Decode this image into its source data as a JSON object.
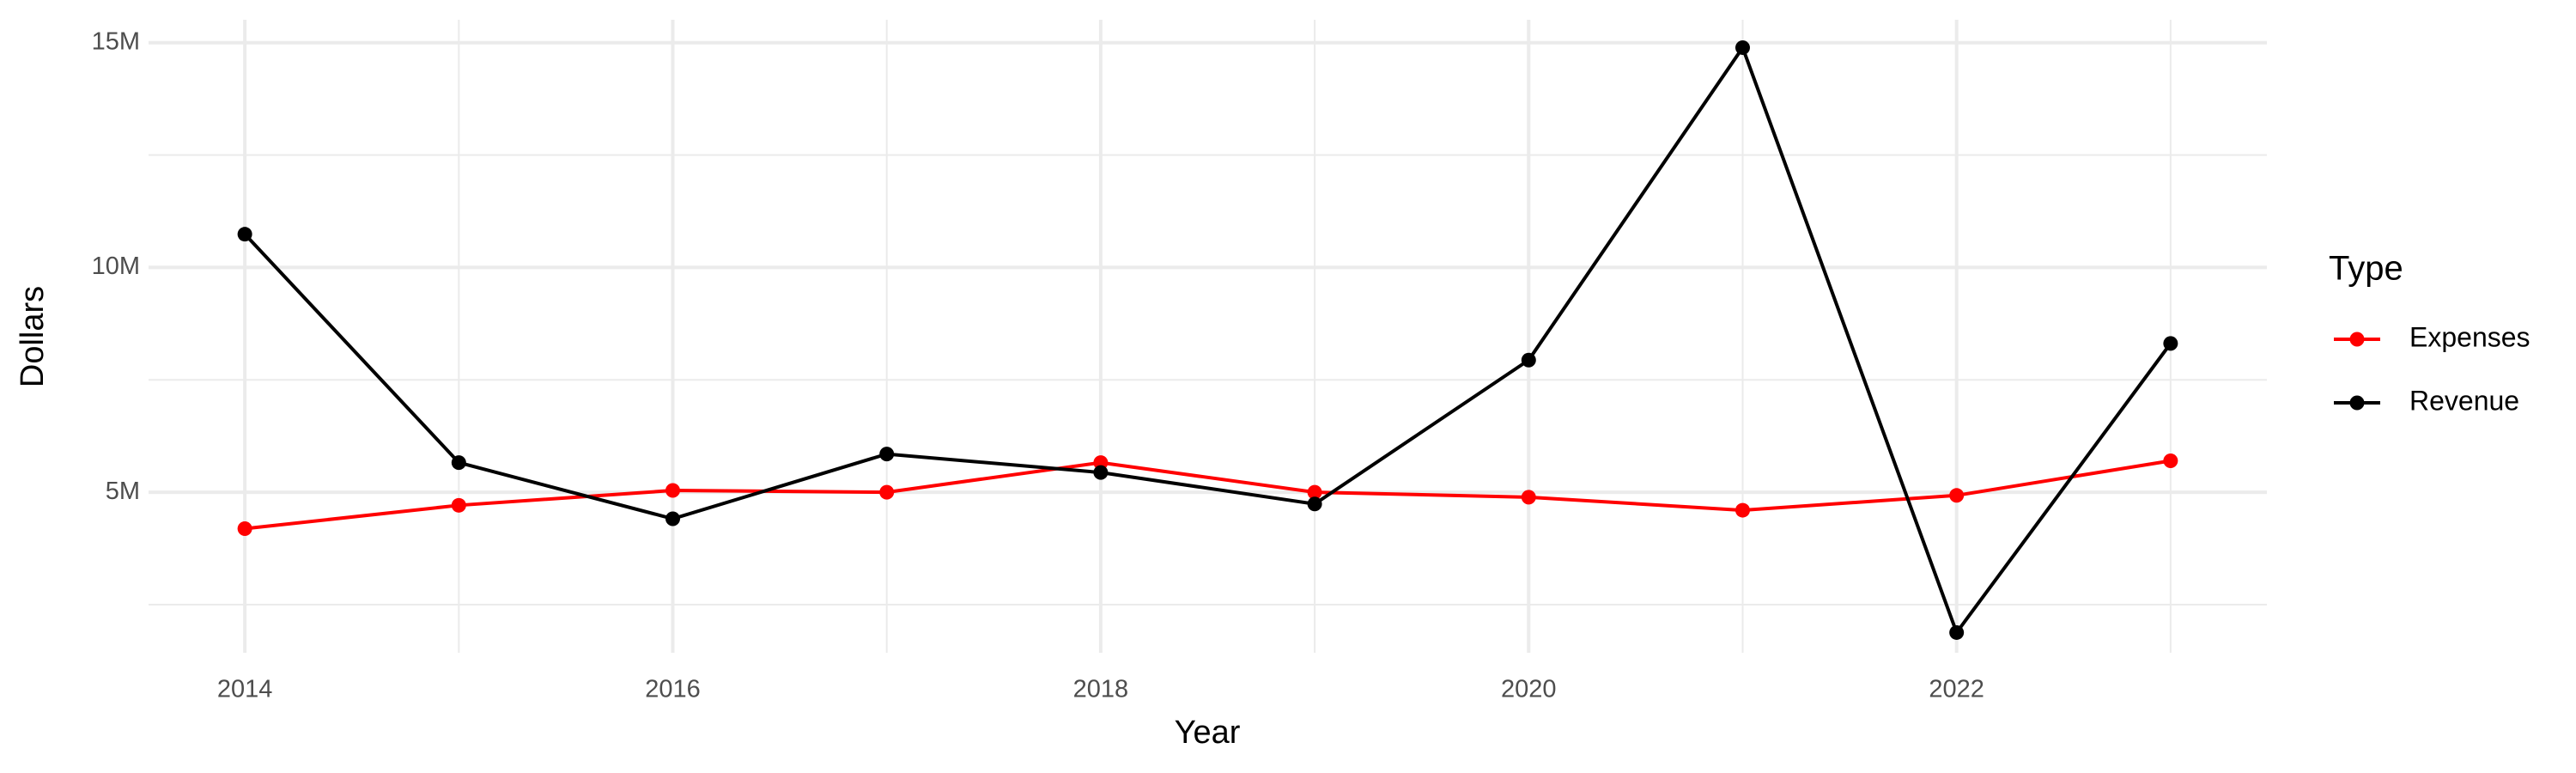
{
  "chart_data": {
    "type": "line",
    "x_label": "Year",
    "y_label": "Dollars",
    "legend_title": "Type",
    "legend": "right",
    "x": [
      2014,
      2015,
      2016,
      2017,
      2018,
      2019,
      2020,
      2021,
      2022,
      2023
    ],
    "series": [
      {
        "name": "Expenses",
        "color": "#ff0000",
        "values": [
          4190000,
          4710000,
          5040000,
          5000000,
          5660000,
          5000000,
          4890000,
          4600000,
          4930000,
          5700000
        ]
      },
      {
        "name": "Revenue",
        "color": "#000000",
        "values": [
          10740000,
          5660000,
          4410000,
          5850000,
          5440000,
          4740000,
          7940000,
          14890000,
          1880000,
          8310000
        ]
      }
    ],
    "xlim": [
      2013.55,
      2023.45
    ],
    "xticks": [
      2014,
      2016,
      2018,
      2020,
      2022
    ],
    "minor_xticks": [
      2015,
      2017,
      2019,
      2021,
      2023
    ],
    "ylim": [
      1430000,
      15510000
    ],
    "yticks": [
      {
        "value": 5000000,
        "label": "5M"
      },
      {
        "value": 10000000,
        "label": "10M"
      },
      {
        "value": 15000000,
        "label": "15M"
      }
    ],
    "minor_yticks": [
      2500000,
      7500000,
      12500000
    ],
    "grid": true
  }
}
